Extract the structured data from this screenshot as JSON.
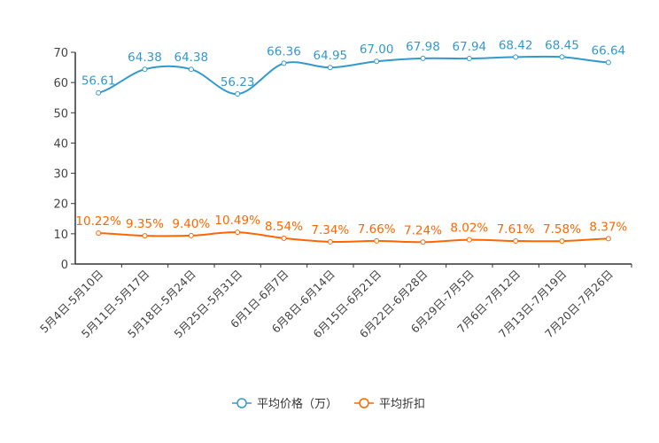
{
  "chart_data": {
    "type": "line",
    "categories": [
      "5月4日-5月10日",
      "5月11日-5月17日",
      "5月18日-5月24日",
      "5月25日-5月31日",
      "6月1日-6月7日",
      "6月8日-6月14日",
      "6月15日-6月21日",
      "6月22日-6月28日",
      "6月29日-7月5日",
      "7月6日-7月12日",
      "7月13日-7月19日",
      "7月20日-7月26日"
    ],
    "series": [
      {
        "name": "平均价格（万）",
        "color": "#3399cc",
        "values": [
          56.61,
          64.38,
          64.38,
          56.23,
          66.36,
          64.95,
          67.0,
          67.98,
          67.94,
          68.42,
          68.45,
          66.64
        ],
        "labels": [
          "56.61",
          "64.38",
          "64.38",
          "56.23",
          "66.36",
          "64.95",
          "67.00",
          "67.98",
          "67.94",
          "68.42",
          "68.45",
          "66.64"
        ]
      },
      {
        "name": "平均折扣",
        "color": "#ff6600",
        "values": [
          10.22,
          9.35,
          9.4,
          10.49,
          8.54,
          7.34,
          7.66,
          7.24,
          8.02,
          7.61,
          7.58,
          8.37
        ],
        "labels": [
          "10.22%",
          "9.35%",
          "9.40%",
          "10.49%",
          "8.54%",
          "7.34%",
          "7.66%",
          "7.24%",
          "8.02%",
          "7.61%",
          "7.58%",
          "8.37%"
        ]
      }
    ],
    "yticks": [
      "0",
      "10",
      "20",
      "30",
      "40",
      "50",
      "60",
      "70"
    ],
    "ylim": [
      0,
      70
    ],
    "legend": "bottom-center"
  }
}
